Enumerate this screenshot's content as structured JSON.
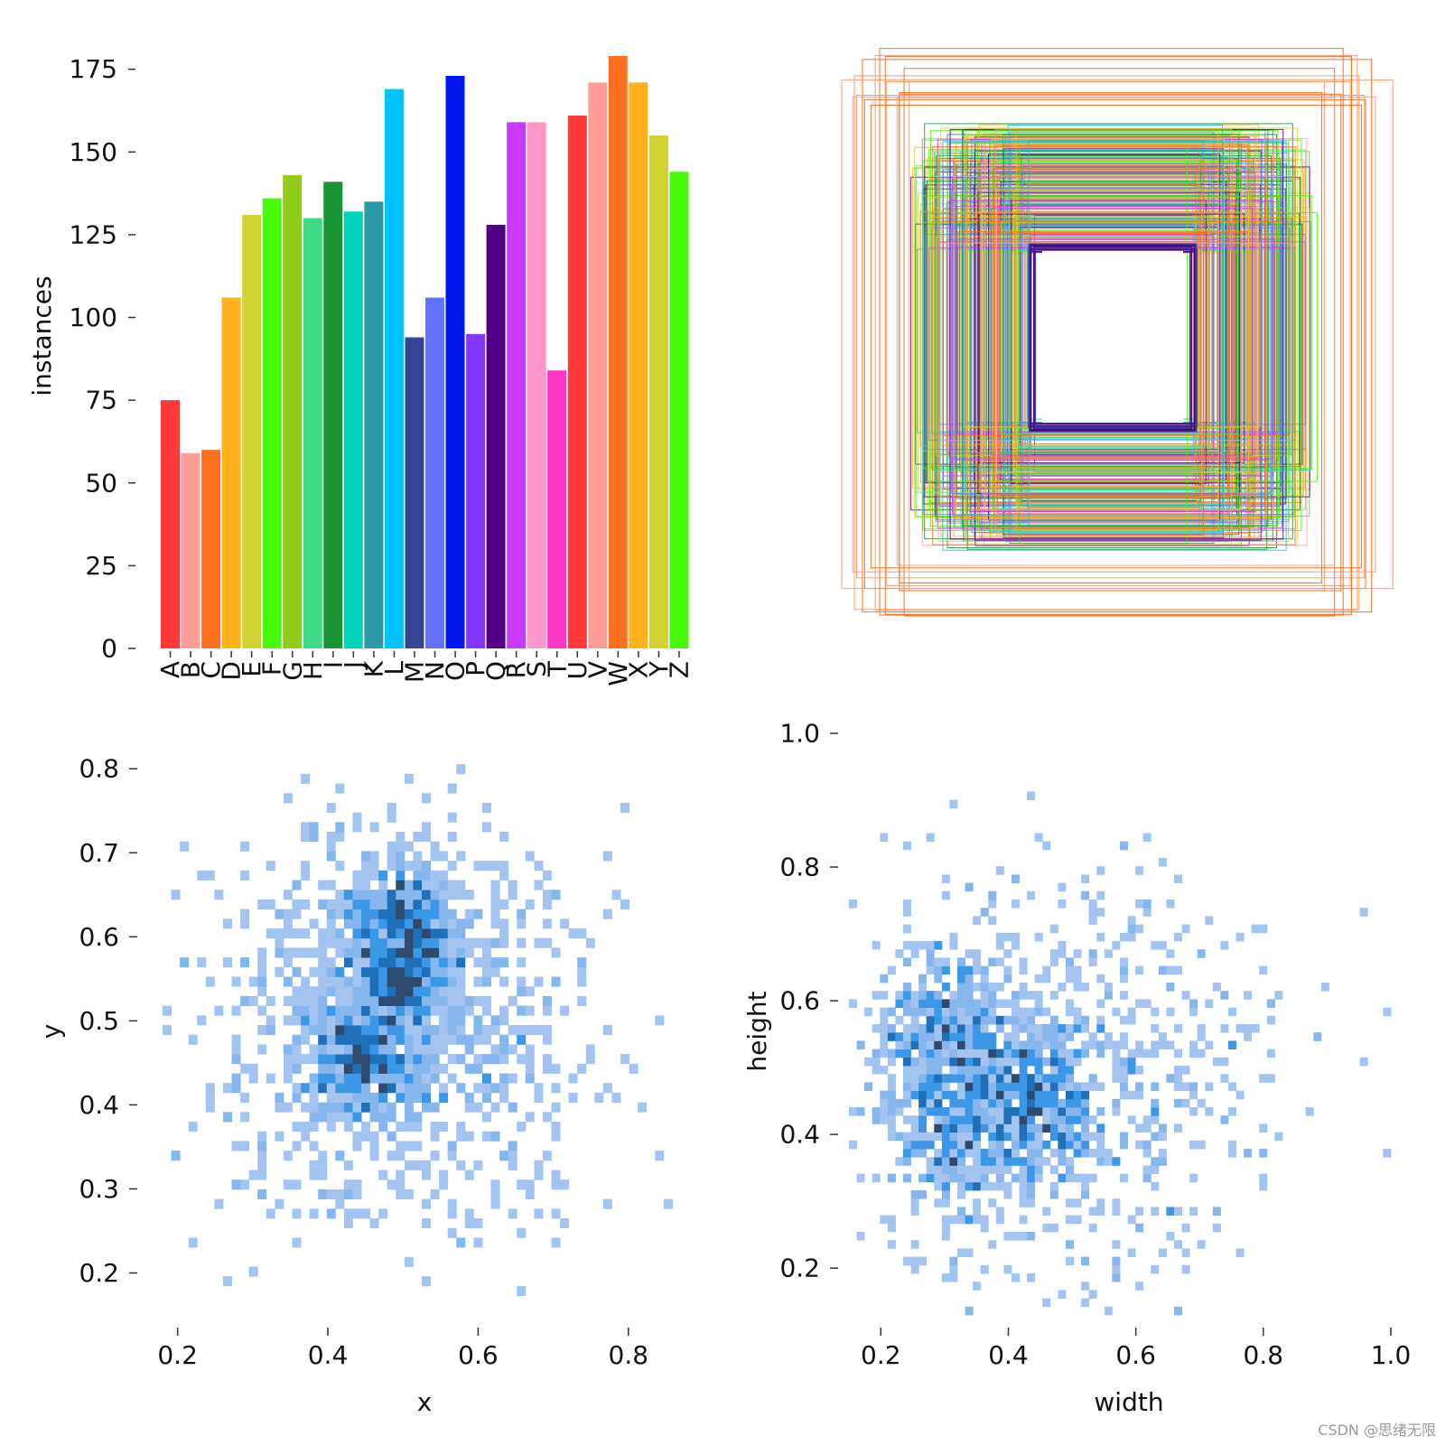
{
  "watermark": "CSDN @思绪无限",
  "chart_data": [
    {
      "type": "bar",
      "ylabel": "instances",
      "xlabel": "",
      "ylim": [
        0,
        180
      ],
      "yticks": [
        0,
        25,
        50,
        75,
        100,
        125,
        150,
        175
      ],
      "categories": [
        "A",
        "B",
        "C",
        "D",
        "E",
        "F",
        "G",
        "H",
        "I",
        "J",
        "K",
        "L",
        "M",
        "N",
        "O",
        "P",
        "Q",
        "R",
        "S",
        "T",
        "U",
        "V",
        "W",
        "X",
        "Y",
        "Z"
      ],
      "values": [
        75,
        59,
        60,
        106,
        131,
        136,
        143,
        130,
        141,
        132,
        135,
        169,
        94,
        106,
        173,
        95,
        128,
        159,
        159,
        84,
        161,
        171,
        179,
        171,
        155,
        144
      ],
      "colors": [
        "#ff3838",
        "#ff9d97",
        "#ff701f",
        "#ffb21d",
        "#cfd231",
        "#48f90a",
        "#92cc17",
        "#3ddb86",
        "#1a9334",
        "#00d4bb",
        "#2c99a8",
        "#00c2ff",
        "#344593",
        "#6473ff",
        "#0018ec",
        "#8438ff",
        "#520085",
        "#cb38ff",
        "#ff95c8",
        "#ff37c7",
        "#ff3838",
        "#ff9d97",
        "#ff701f",
        "#ffb21d",
        "#cfd231",
        "#48f90a"
      ]
    },
    {
      "type": "box_overlay",
      "description_colors": [
        "#ff701f",
        "#ff9d97",
        "#cfd231",
        "#48f90a",
        "#3ddb86",
        "#00d4bb",
        "#6473ff",
        "#cb38ff",
        "#520085",
        "#1a9334",
        "#ffb21d",
        "#00c2ff"
      ]
    },
    {
      "type": "heatmap",
      "xlabel": "x",
      "ylabel": "y",
      "xlim": [
        0.18,
        0.87
      ],
      "ylim": [
        0.15,
        0.84
      ],
      "xticks": [
        0.2,
        0.4,
        0.6,
        0.8
      ],
      "yticks": [
        0.2,
        0.3,
        0.4,
        0.5,
        0.6,
        0.7,
        0.8
      ],
      "density_peaks": [
        [
          0.5,
          0.62
        ],
        [
          0.5,
          0.55
        ],
        [
          0.45,
          0.45
        ]
      ]
    },
    {
      "type": "heatmap",
      "xlabel": "width",
      "ylabel": "height",
      "xlim": [
        0.15,
        1.0
      ],
      "ylim": [
        0.13,
        1.0
      ],
      "xticks": [
        0.2,
        0.4,
        0.6,
        0.8,
        1.0
      ],
      "yticks": [
        0.2,
        0.4,
        0.6,
        0.8,
        1.0
      ],
      "density_peaks": [
        [
          0.3,
          0.55
        ],
        [
          0.33,
          0.41
        ],
        [
          0.45,
          0.45
        ]
      ]
    }
  ]
}
